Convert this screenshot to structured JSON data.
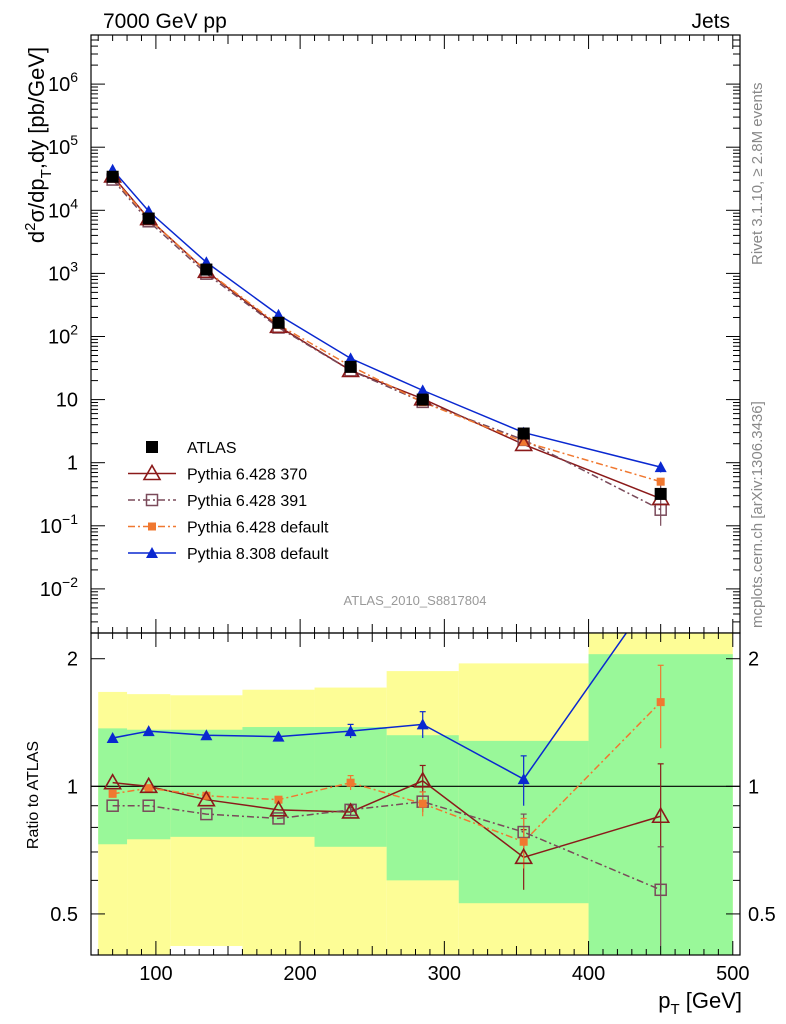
{
  "header": {
    "left": "7000 GeV pp",
    "right": "Jets"
  },
  "side_labels": {
    "rivet": "Rivet 3.1.10, ≥ 2.8M events",
    "mcplots": "mcplots.cern.ch [arXiv:1306.3436]"
  },
  "analysis_label": "ATLAS_2010_S8817804",
  "colors": {
    "atlas": "#000000",
    "p370": "#8b1a1a",
    "p391": "#7a4a5a",
    "p6def": "#f07830",
    "p8def": "#0a28d0",
    "band_green": "#99f899",
    "band_yellow": "#fdfd96"
  },
  "chart_data": [
    {
      "type": "line",
      "title": "",
      "xlabel": "p_T [GeV]",
      "ylabel": "d²σ/dp_T,dy [pb/GeV]",
      "yscale": "log",
      "xlim": [
        55,
        505
      ],
      "ylim": [
        0.002,
        6000000
      ],
      "x_ticks": [
        100,
        200,
        300,
        400,
        500
      ],
      "y_tick_labels": [
        "10^6",
        "10^5",
        "10^4",
        "10^3",
        "10^2",
        "10",
        "1",
        "10^-1",
        "10^-2"
      ],
      "legend_position": "bottom-left",
      "x": [
        70,
        95,
        135,
        185,
        235,
        285,
        355,
        450
      ],
      "series": [
        {
          "name": "ATLAS",
          "key": "atlas",
          "marker": "filled-square",
          "values": [
            34000,
            7400,
            1150,
            165,
            33,
            10,
            2.9,
            0.32
          ]
        },
        {
          "name": "Pythia 6.428 370",
          "key": "p370",
          "marker": "open-triangle",
          "values": [
            35000,
            7400,
            1080,
            145,
            29,
            10.3,
            1.95,
            0.27
          ]
        },
        {
          "name": "Pythia 6.428 391",
          "key": "p391",
          "marker": "open-square",
          "values": [
            30700,
            6700,
            990,
            139,
            29,
            9.2,
            2.3,
            0.18
          ]
        },
        {
          "name": "Pythia 6.428 default",
          "key": "p6def",
          "marker": "filled-small-square",
          "values": [
            32800,
            7350,
            1100,
            153,
            34,
            9.1,
            2.15,
            0.5
          ]
        },
        {
          "name": "Pythia 8.308 default",
          "key": "p8def",
          "marker": "filled-triangle",
          "values": [
            44000,
            9700,
            1500,
            220,
            45,
            14,
            3.0,
            0.85
          ]
        }
      ]
    },
    {
      "type": "line",
      "title": "",
      "xlabel": "p_T [GeV]",
      "ylabel": "Ratio to ATLAS",
      "yscale": "log",
      "xlim": [
        55,
        505
      ],
      "ylim": [
        0.4,
        2.3
      ],
      "y_ticks": [
        0.5,
        1,
        2
      ],
      "x": [
        70,
        95,
        135,
        185,
        235,
        285,
        355,
        450
      ],
      "series": [
        {
          "name": "Pythia 6.428 370",
          "key": "p370",
          "values": [
            1.02,
            1.0,
            0.93,
            0.88,
            0.87,
            1.03,
            0.68,
            0.85
          ],
          "errors": [
            0,
            0,
            0,
            0,
            0.02,
            0.09,
            0.11,
            0.28
          ]
        },
        {
          "name": "Pythia 6.428 391",
          "key": "p391",
          "values": [
            0.9,
            0.9,
            0.86,
            0.84,
            0.88,
            0.92,
            0.78,
            0.57
          ],
          "errors": [
            0,
            0,
            0,
            0,
            0.02,
            0.05,
            0.08,
            0.15
          ]
        },
        {
          "name": "Pythia 6.428 default",
          "key": "p6def",
          "values": [
            0.96,
            0.99,
            0.95,
            0.93,
            1.02,
            0.91,
            0.74,
            1.58
          ],
          "errors": [
            0,
            0,
            0,
            0,
            0.04,
            0.06,
            0.1,
            0.35
          ]
        },
        {
          "name": "Pythia 8.308 default",
          "key": "p8def",
          "values": [
            1.3,
            1.35,
            1.32,
            1.31,
            1.35,
            1.4,
            1.04,
            3.0
          ],
          "errors": [
            0,
            0,
            0,
            0,
            0.05,
            0.1,
            0.14,
            0
          ]
        }
      ],
      "bands": {
        "edges": [
          60,
          80,
          110,
          160,
          210,
          260,
          310,
          400,
          500
        ],
        "inner": [
          [
            0.73,
            1.37
          ],
          [
            0.75,
            1.36
          ],
          [
            0.76,
            1.36
          ],
          [
            0.76,
            1.38
          ],
          [
            0.72,
            1.38
          ],
          [
            0.6,
            1.32
          ],
          [
            0.53,
            1.28
          ],
          [
            0.4,
            2.05
          ]
        ],
        "outer": [
          [
            0.34,
            1.67
          ],
          [
            0.34,
            1.65
          ],
          [
            0.42,
            1.64
          ],
          [
            0.34,
            1.69
          ],
          [
            0.34,
            1.71
          ],
          [
            0.34,
            1.87
          ],
          [
            0.34,
            1.95
          ],
          [
            0.34,
            2.3
          ]
        ]
      }
    }
  ]
}
